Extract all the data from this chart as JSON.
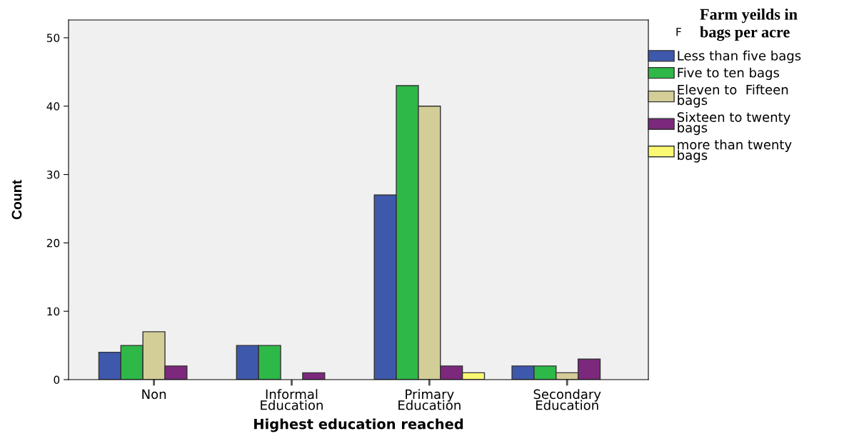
{
  "chart_data": {
    "type": "bar",
    "xlabel": "Highest education reached",
    "ylabel": "Count",
    "legend_title": "Farm yeilds in\nbags per acre",
    "annotations": [
      "F"
    ],
    "categories": [
      "Non",
      "Informal\nEducation",
      "Primary\nEducation",
      "Secondary\nEducation"
    ],
    "series": [
      {
        "name": "Less than five bags",
        "color": "#3e58ac",
        "values": [
          4,
          5,
          27,
          2
        ]
      },
      {
        "name": "Five to ten bags",
        "color": "#2eb848",
        "values": [
          5,
          5,
          43,
          2
        ]
      },
      {
        "name": "Eleven to  Fifteen\nbags",
        "color": "#d3ce97",
        "values": [
          7,
          null,
          40,
          1
        ]
      },
      {
        "name": "Sixteen to twenty\nbags",
        "color": "#7c287d",
        "values": [
          2,
          1,
          2,
          3
        ]
      },
      {
        "name": "more than twenty\nbags",
        "color": "#fbf873",
        "values": [
          null,
          null,
          1,
          null
        ]
      }
    ],
    "ylim": [
      0,
      52.6
    ],
    "yticks": [
      0,
      10,
      20,
      30,
      40,
      50
    ],
    "grid": false,
    "legend": "right"
  }
}
